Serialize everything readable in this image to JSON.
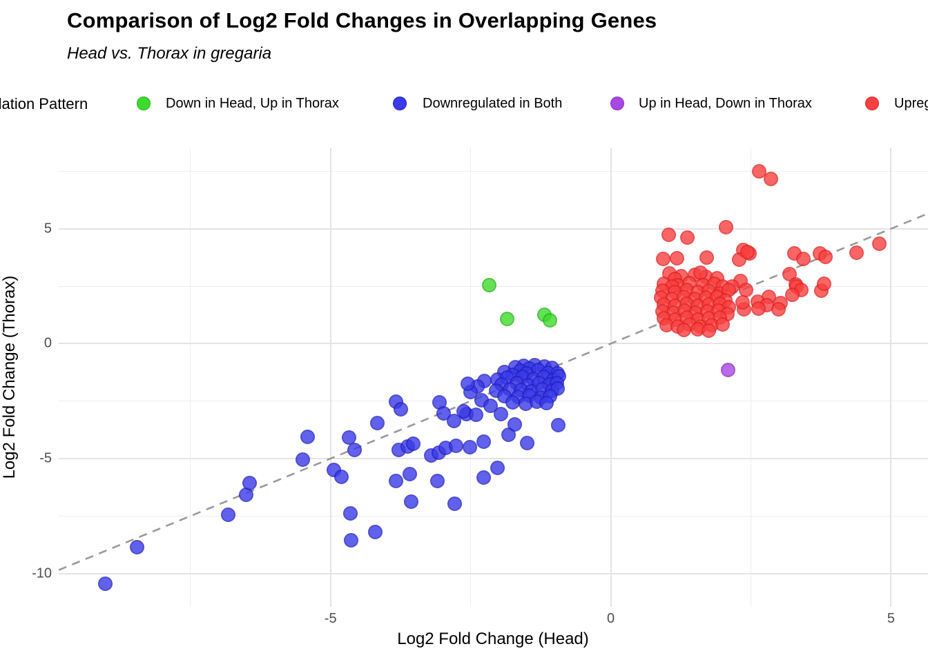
{
  "header": {
    "title": "Comparison of Log2 Fold Changes in Overlapping Genes",
    "subtitle": "Head vs. Thorax in gregaria"
  },
  "legend": {
    "title": "Regulation Pattern"
  },
  "chart_data": {
    "type": "scatter",
    "title": "Comparison of Log2 Fold Changes in Overlapping Genes",
    "subtitle": "Head vs. Thorax in gregaria",
    "xlabel": "Log2 Fold Change (Head)",
    "ylabel": "Log2 Fold Change (Thorax)",
    "xlim": [
      -9.85,
      5.66
    ],
    "ylim": [
      -11.45,
      8.5
    ],
    "x_major_ticks": [
      -5,
      0,
      5
    ],
    "x_minor_ticks": [
      -7.5,
      -2.5,
      2.5
    ],
    "y_major_ticks": [
      5,
      0,
      -5,
      -10
    ],
    "y_minor_ticks": [
      7.5,
      2.5,
      -2.5,
      -7.5
    ],
    "grid": true,
    "legend_title": "Regulation Pattern",
    "legend_position": "top",
    "reference_line": {
      "type": "identity y=x",
      "style": "dashed",
      "color": "#999999"
    },
    "series": [
      {
        "name": "Down in Head, Up in Thorax",
        "color": "#3ddb2b",
        "border_color": "#27b31a",
        "points": [
          [
            -2.17,
            2.55
          ],
          [
            -1.85,
            1.08
          ],
          [
            -1.18,
            1.25
          ],
          [
            -1.08,
            1.02
          ]
        ]
      },
      {
        "name": "Downregulated in Both",
        "color": "#3a3ae8",
        "border_color": "#2222c4",
        "points": [
          [
            -9.02,
            -10.45
          ],
          [
            -8.45,
            -8.85
          ],
          [
            -6.83,
            -7.45
          ],
          [
            -6.5,
            -6.56
          ],
          [
            -6.44,
            -6.05
          ],
          [
            -5.49,
            -5.03
          ],
          [
            -5.41,
            -4.05
          ],
          [
            -4.94,
            -5.5
          ],
          [
            -4.8,
            -5.78
          ],
          [
            -4.67,
            -4.08
          ],
          [
            -4.57,
            -4.62
          ],
          [
            -4.64,
            -7.38
          ],
          [
            -4.63,
            -8.55
          ],
          [
            -4.2,
            -8.18
          ],
          [
            -4.17,
            -3.45
          ],
          [
            -3.83,
            -2.52
          ],
          [
            -3.74,
            -2.86
          ],
          [
            -3.78,
            -4.62
          ],
          [
            -3.62,
            -4.46
          ],
          [
            -3.53,
            -4.34
          ],
          [
            -3.83,
            -5.98
          ],
          [
            -3.58,
            -5.68
          ],
          [
            -3.56,
            -6.88
          ],
          [
            -3.2,
            -4.85
          ],
          [
            -3.07,
            -4.75
          ],
          [
            -2.94,
            -4.52
          ],
          [
            -3.09,
            -5.96
          ],
          [
            -2.78,
            -6.95
          ],
          [
            -3.05,
            -2.55
          ],
          [
            -2.98,
            -3.02
          ],
          [
            -2.8,
            -3.36
          ],
          [
            -2.57,
            -3.06
          ],
          [
            -2.76,
            -4.43
          ],
          [
            -2.51,
            -4.49
          ],
          [
            -2.27,
            -5.81
          ],
          [
            -2.02,
            -5.39
          ],
          [
            -2.27,
            -4.25
          ],
          [
            -1.83,
            -3.95
          ],
          [
            -1.49,
            -4.31
          ],
          [
            -1.96,
            -3.05
          ],
          [
            -1.71,
            -3.5
          ],
          [
            -0.94,
            -3.55
          ],
          [
            -2.25,
            -1.62
          ],
          [
            -2.38,
            -1.85
          ],
          [
            -2.5,
            -2.1
          ],
          [
            -2.3,
            -2.45
          ],
          [
            -2.15,
            -2.7
          ],
          [
            -2.55,
            -1.75
          ],
          [
            -2.62,
            -2.95
          ],
          [
            -2.4,
            -3.1
          ],
          [
            -1.55,
            -0.95
          ],
          [
            -1.35,
            -0.92
          ],
          [
            -1.18,
            -0.98
          ],
          [
            -1.7,
            -1.02
          ],
          [
            -1.05,
            -1.05
          ],
          [
            -1.45,
            -1.08
          ],
          [
            -1.9,
            -1.22
          ],
          [
            -1.62,
            -1.18
          ],
          [
            -1.3,
            -1.15
          ],
          [
            -1.12,
            -1.25
          ],
          [
            -0.95,
            -1.3
          ],
          [
            -1.5,
            -1.28
          ],
          [
            -1.75,
            -1.35
          ],
          [
            -2.02,
            -1.55
          ],
          [
            -1.85,
            -1.48
          ],
          [
            -1.58,
            -1.45
          ],
          [
            -1.38,
            -1.52
          ],
          [
            -1.2,
            -1.45
          ],
          [
            -1.02,
            -1.55
          ],
          [
            -0.92,
            -1.42
          ],
          [
            -1.95,
            -1.78
          ],
          [
            -1.68,
            -1.72
          ],
          [
            -1.48,
            -1.8
          ],
          [
            -1.28,
            -1.7
          ],
          [
            -1.1,
            -1.78
          ],
          [
            -0.96,
            -1.72
          ],
          [
            -2.05,
            -2.05
          ],
          [
            -1.8,
            -1.98
          ],
          [
            -1.6,
            -2.02
          ],
          [
            -1.42,
            -2.08
          ],
          [
            -1.22,
            -1.98
          ],
          [
            -1.05,
            -2.05
          ],
          [
            -0.95,
            -1.95
          ],
          [
            -1.9,
            -2.28
          ],
          [
            -1.65,
            -2.32
          ],
          [
            -1.45,
            -2.25
          ],
          [
            -1.25,
            -2.35
          ],
          [
            -1.08,
            -2.28
          ],
          [
            -1.75,
            -2.55
          ],
          [
            -1.52,
            -2.6
          ],
          [
            -1.32,
            -2.52
          ],
          [
            -1.15,
            -2.58
          ]
        ]
      },
      {
        "name": "Up in Head, Down in Thorax",
        "color": "#a947e3",
        "border_color": "#8a2cc4",
        "points": [
          [
            2.09,
            -1.15
          ]
        ]
      },
      {
        "name": "Upregulated in Both",
        "color": "#f94040",
        "border_color": "#e02525",
        "points": [
          [
            2.65,
            7.49
          ],
          [
            2.86,
            7.16
          ],
          [
            2.06,
            5.06
          ],
          [
            1.03,
            4.75
          ],
          [
            1.37,
            4.62
          ],
          [
            0.94,
            3.68
          ],
          [
            1.18,
            3.72
          ],
          [
            1.71,
            3.74
          ],
          [
            2.37,
            4.07
          ],
          [
            2.47,
            3.92
          ],
          [
            2.29,
            3.67
          ],
          [
            2.44,
            3.98
          ],
          [
            3.28,
            3.92
          ],
          [
            3.44,
            3.68
          ],
          [
            3.73,
            3.92
          ],
          [
            3.83,
            3.77
          ],
          [
            4.38,
            3.95
          ],
          [
            4.79,
            4.35
          ],
          [
            3.19,
            3.02
          ],
          [
            3.3,
            2.58
          ],
          [
            3.76,
            2.3
          ],
          [
            3.8,
            2.62
          ],
          [
            3.31,
            2.49
          ],
          [
            3.4,
            2.33
          ],
          [
            3.24,
            2.13
          ],
          [
            3.03,
            1.76
          ],
          [
            2.99,
            1.5
          ],
          [
            2.82,
            2.04
          ],
          [
            2.62,
            1.83
          ],
          [
            2.78,
            1.68
          ],
          [
            2.64,
            1.53
          ],
          [
            2.38,
            1.5
          ],
          [
            2.31,
            2.72
          ],
          [
            2.17,
            2.49
          ],
          [
            2.41,
            2.34
          ],
          [
            2.35,
            1.8
          ],
          [
            1.05,
            3.05
          ],
          [
            1.25,
            2.95
          ],
          [
            1.5,
            3.0
          ],
          [
            1.7,
            2.9
          ],
          [
            1.9,
            2.85
          ],
          [
            1.15,
            2.82
          ],
          [
            1.6,
            3.1
          ],
          [
            0.95,
            2.6
          ],
          [
            1.2,
            2.55
          ],
          [
            1.4,
            2.65
          ],
          [
            1.65,
            2.55
          ],
          [
            1.85,
            2.6
          ],
          [
            2.0,
            2.5
          ],
          [
            1.1,
            2.48
          ],
          [
            0.92,
            2.3
          ],
          [
            1.15,
            2.25
          ],
          [
            1.35,
            2.35
          ],
          [
            1.55,
            2.25
          ],
          [
            1.75,
            2.3
          ],
          [
            1.95,
            2.2
          ],
          [
            2.1,
            2.35
          ],
          [
            0.9,
            2.0
          ],
          [
            1.1,
            1.95
          ],
          [
            1.3,
            2.05
          ],
          [
            1.5,
            1.95
          ],
          [
            1.7,
            2.0
          ],
          [
            1.9,
            2.05
          ],
          [
            2.05,
            1.9
          ],
          [
            0.95,
            1.7
          ],
          [
            1.15,
            1.65
          ],
          [
            1.35,
            1.75
          ],
          [
            1.55,
            1.65
          ],
          [
            1.75,
            1.7
          ],
          [
            1.95,
            1.75
          ],
          [
            2.1,
            1.6
          ],
          [
            0.92,
            1.4
          ],
          [
            1.12,
            1.35
          ],
          [
            1.32,
            1.45
          ],
          [
            1.52,
            1.35
          ],
          [
            1.72,
            1.4
          ],
          [
            1.92,
            1.45
          ],
          [
            2.08,
            1.3
          ],
          [
            0.95,
            1.1
          ],
          [
            1.15,
            1.05
          ],
          [
            1.35,
            1.15
          ],
          [
            1.55,
            1.05
          ],
          [
            1.75,
            1.1
          ],
          [
            1.95,
            1.15
          ],
          [
            1.0,
            0.8
          ],
          [
            1.2,
            0.75
          ],
          [
            1.4,
            0.85
          ],
          [
            1.6,
            0.75
          ],
          [
            1.8,
            0.8
          ],
          [
            2.0,
            0.85
          ],
          [
            1.3,
            0.6
          ],
          [
            1.55,
            0.62
          ],
          [
            1.75,
            0.58
          ]
        ]
      }
    ]
  }
}
